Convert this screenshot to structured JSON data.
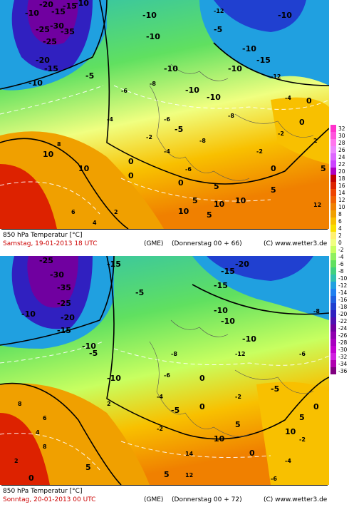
{
  "panels": [
    {
      "title": "850 hPa Temperatur [°C]",
      "date": "Samstag, 19-01-2013  18 UTC",
      "model": "(GME)",
      "run": "(Donnerstag 00 + 66)",
      "credit": "(C) www.wetter3.de",
      "labels": [
        "-10",
        "-20",
        "-15",
        "-15",
        "-10",
        "-25",
        "-30",
        "-35",
        "-25",
        "-20",
        "-15",
        "-10",
        "-5",
        "-10",
        "-10",
        "-5",
        "-10",
        "-12",
        "-10",
        "-15",
        "-10",
        "-12",
        "-10",
        "-8",
        "-6",
        "-4",
        "-10",
        "-8",
        "-10",
        "-6",
        "-5",
        "0",
        "-2",
        "-4",
        "-6",
        "-8",
        "-2",
        "0",
        "5",
        "10",
        "10",
        "8",
        "6",
        "4",
        "2",
        "0",
        "5",
        "10",
        "10",
        "0",
        "5",
        "10",
        "12",
        "5",
        "0",
        "-2",
        "-4",
        "0",
        "2",
        "5"
      ]
    },
    {
      "title": "850 hPa Temperatur [°C]",
      "date": "Sonntag, 20-01-2013  00 UTC",
      "model": "(GME)",
      "run": "(Donnerstag 00 + 72)",
      "credit": "(C) www.wetter3.de",
      "labels": [
        "-25",
        "-30",
        "-35",
        "-25",
        "-20",
        "-15",
        "-10",
        "-15",
        "-10",
        "-5",
        "-10",
        "-5",
        "-15",
        "-20",
        "-15",
        "-10",
        "-10",
        "-12",
        "-8",
        "-6",
        "-5",
        "-4",
        "-2",
        "0",
        "-2",
        "0",
        "5",
        "-5",
        "10",
        "8",
        "6",
        "4",
        "2",
        "0",
        "5",
        "12",
        "14",
        "10",
        "5",
        "0",
        "-2",
        "-4",
        "-6",
        "-10",
        "-8",
        "-6",
        "2",
        "8",
        "5",
        "0"
      ]
    }
  ],
  "colorbar": {
    "ticks": [
      "32",
      "30",
      "28",
      "26",
      "24",
      "22",
      "20",
      "18",
      "16",
      "14",
      "12",
      "10",
      "8",
      "6",
      "4",
      "2",
      "0",
      "-2",
      "-4",
      "-6",
      "-8",
      "-10",
      "-12",
      "-14",
      "-16",
      "-18",
      "-20",
      "-22",
      "-24",
      "-26",
      "-28",
      "-30",
      "-32",
      "-34",
      "-36"
    ],
    "colors": [
      "#ff33cc",
      "#ff55dd",
      "#ff77ee",
      "#ee88ff",
      "#dd66ff",
      "#cc44ff",
      "#b000c0",
      "#c00000",
      "#dd2200",
      "#ee4400",
      "#f06000",
      "#f08000",
      "#f0a000",
      "#f8c000",
      "#f8e000",
      "#fff070",
      "#f0ff80",
      "#c8ff60",
      "#90f060",
      "#60e060",
      "#40d080",
      "#30c0b0",
      "#20a0e0",
      "#2080f0",
      "#2060e0",
      "#2040d0",
      "#3020c0",
      "#5010b0",
      "#7000a0",
      "#9000b0",
      "#a800c0",
      "#c000d0",
      "#d020e0",
      "#b000b0",
      "#800080"
    ]
  }
}
